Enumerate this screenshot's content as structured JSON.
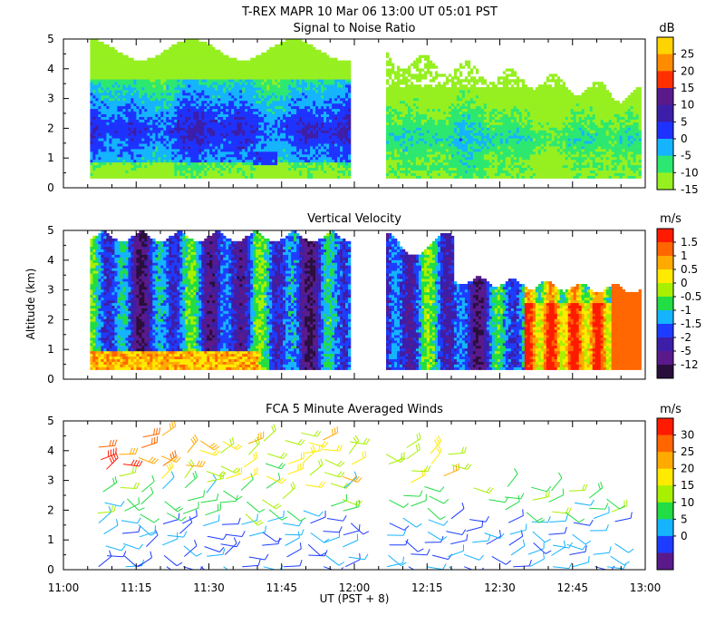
{
  "figure": {
    "title": "T-REX   MAPR 10 Mar 06   13:00 UT   05:01   PST",
    "x_axis_label": "UT  (PST + 8)",
    "y_axis_label": "Altitude (km)"
  },
  "chart_data": [
    {
      "type": "heatmap",
      "title": "Signal to Noise Ratio",
      "colorbar_unit": "dB",
      "colorbar_levels": [
        "25",
        "20",
        "15",
        "10",
        "5",
        "0",
        "-5",
        "-10",
        "-15"
      ],
      "colors_top_to_bottom": [
        "#ffd400",
        "#ff8c00",
        "#ff3000",
        "#5a1a8c",
        "#3c1ea8",
        "#1e32ff",
        "#14b4ff",
        "#2de870",
        "#96f020"
      ],
      "x_range_ut": [
        "11:00",
        "13:00"
      ],
      "y_range_km": [
        0,
        5
      ],
      "data_gap_ut": [
        "11:59",
        "12:06"
      ],
      "note": "High SNR (5-15 dB) in lowest 2 km before 12:00; lower SNR and clearing aloft after 12:06"
    },
    {
      "type": "heatmap",
      "title": "Vertical Velocity",
      "colorbar_unit": "m/s",
      "colorbar_levels": [
        "1.5",
        "1",
        "0.5",
        "0",
        "-0.5",
        "-1",
        "-1.5",
        "-2",
        "-5",
        "-12"
      ],
      "colors_top_to_bottom": [
        "#ff1a00",
        "#ff6600",
        "#ffaa00",
        "#ffea00",
        "#a8f000",
        "#22dd44",
        "#14b4ff",
        "#1e3cff",
        "#3c1ea8",
        "#5a1a8c",
        "#2a0e3c"
      ],
      "x_range_ut": [
        "11:00",
        "13:00"
      ],
      "y_range_km": [
        0,
        5
      ],
      "data_gap_ut": [
        "11:59",
        "12:06"
      ],
      "note": "Mostly downward motion (-1 to -2 m/s) aloft; strong updrafts (>1 m/s) near surface after 12:30"
    },
    {
      "type": "scatter",
      "title": "FCA 5 Minute Averaged Winds",
      "colorbar_unit": "m/s",
      "colorbar_levels": [
        "30",
        "25",
        "20",
        "15",
        "10",
        "5",
        "0"
      ],
      "colors_top_to_bottom": [
        "#ff1a00",
        "#ff6600",
        "#ffaa00",
        "#ffea00",
        "#a8f000",
        "#22dd44",
        "#14b4ff",
        "#1e3cff",
        "#5a1a8c"
      ],
      "x_range_ut": [
        "11:00",
        "13:00"
      ],
      "y_range_km": [
        0,
        5
      ],
      "note": "Wind barbs; speeds 20-30 m/s near 3.5-4.5 km around 11:05-11:20, weaker (<10 m/s) below 2 km"
    }
  ],
  "axes": {
    "x_ticks": [
      "11:00",
      "11:15",
      "11:30",
      "11:45",
      "12:00",
      "12:15",
      "12:30",
      "12:45",
      "13:00"
    ],
    "y_ticks": [
      "0",
      "1",
      "2",
      "3",
      "4",
      "5"
    ]
  }
}
